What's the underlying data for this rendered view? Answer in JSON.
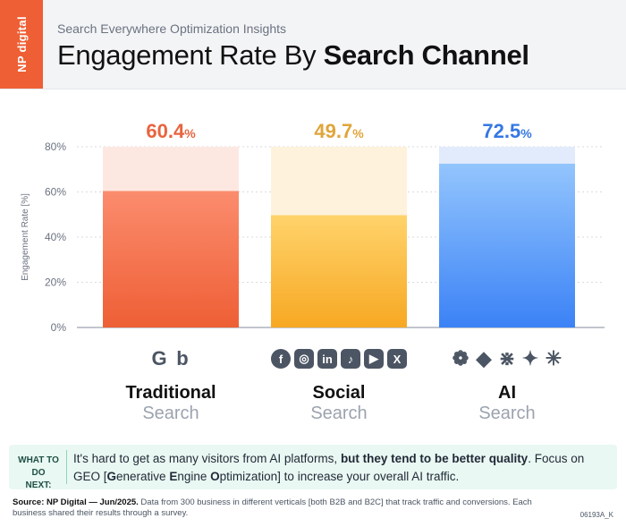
{
  "brand": "NP digital",
  "subtitle": "Search Everywhere Optimization Insights",
  "title_regular": "Engagement Rate By ",
  "title_bold": "Search Channel",
  "chart_data": {
    "type": "bar",
    "ylabel": "Engagement Rate [%]",
    "ylim": [
      0,
      80
    ],
    "yticks": [
      "0%",
      "20%",
      "40%",
      "60%",
      "80%"
    ],
    "categories": [
      "Traditional Search",
      "Social Search",
      "AI Search"
    ],
    "values": [
      60.4,
      49.7,
      72.5
    ],
    "value_labels": [
      "60.4",
      "49.7",
      "72.5"
    ],
    "value_unit": "%",
    "colors": [
      "#ee5f35",
      "#f5a623",
      "#3b82f6"
    ]
  },
  "categories": [
    {
      "name": "Traditional",
      "sub": "Search",
      "icons": [
        "G",
        "b"
      ],
      "icon_names": [
        "google-icon",
        "bing-icon"
      ]
    },
    {
      "name": "Social",
      "sub": "Search",
      "icons": [
        "f",
        "◎",
        "in",
        "♪",
        "▶",
        "X"
      ],
      "icon_names": [
        "facebook-icon",
        "instagram-icon",
        "linkedin-icon",
        "tiktok-icon",
        "youtube-icon",
        "x-icon"
      ]
    },
    {
      "name": "AI",
      "sub": "Search",
      "icons": [
        "❁",
        "◆",
        "⋇",
        "✦",
        "✳"
      ],
      "icon_names": [
        "chatgpt-icon",
        "copilot-icon",
        "perplexity-icon",
        "gemini-icon",
        "claude-icon"
      ]
    }
  ],
  "callout": {
    "label": "WHAT TO DO NEXT:",
    "text_1": "It's hard to get as many visitors from AI platforms, ",
    "text_bold": "but they tend to be better quality",
    "text_2": ". Focus on GEO [",
    "g": "G",
    "text_3": "enerative ",
    "e": "E",
    "text_4": "ngine ",
    "o": "O",
    "text_5": "ptimization] to increase your overall AI traffic."
  },
  "footer": {
    "source": "Source: NP Digital — Jun/2025.",
    "text": " Data from 300 business in different verticals [both B2B and B2C] that track traffic and conversions. Each business shared their results through a survey."
  },
  "code": "06193A_K"
}
